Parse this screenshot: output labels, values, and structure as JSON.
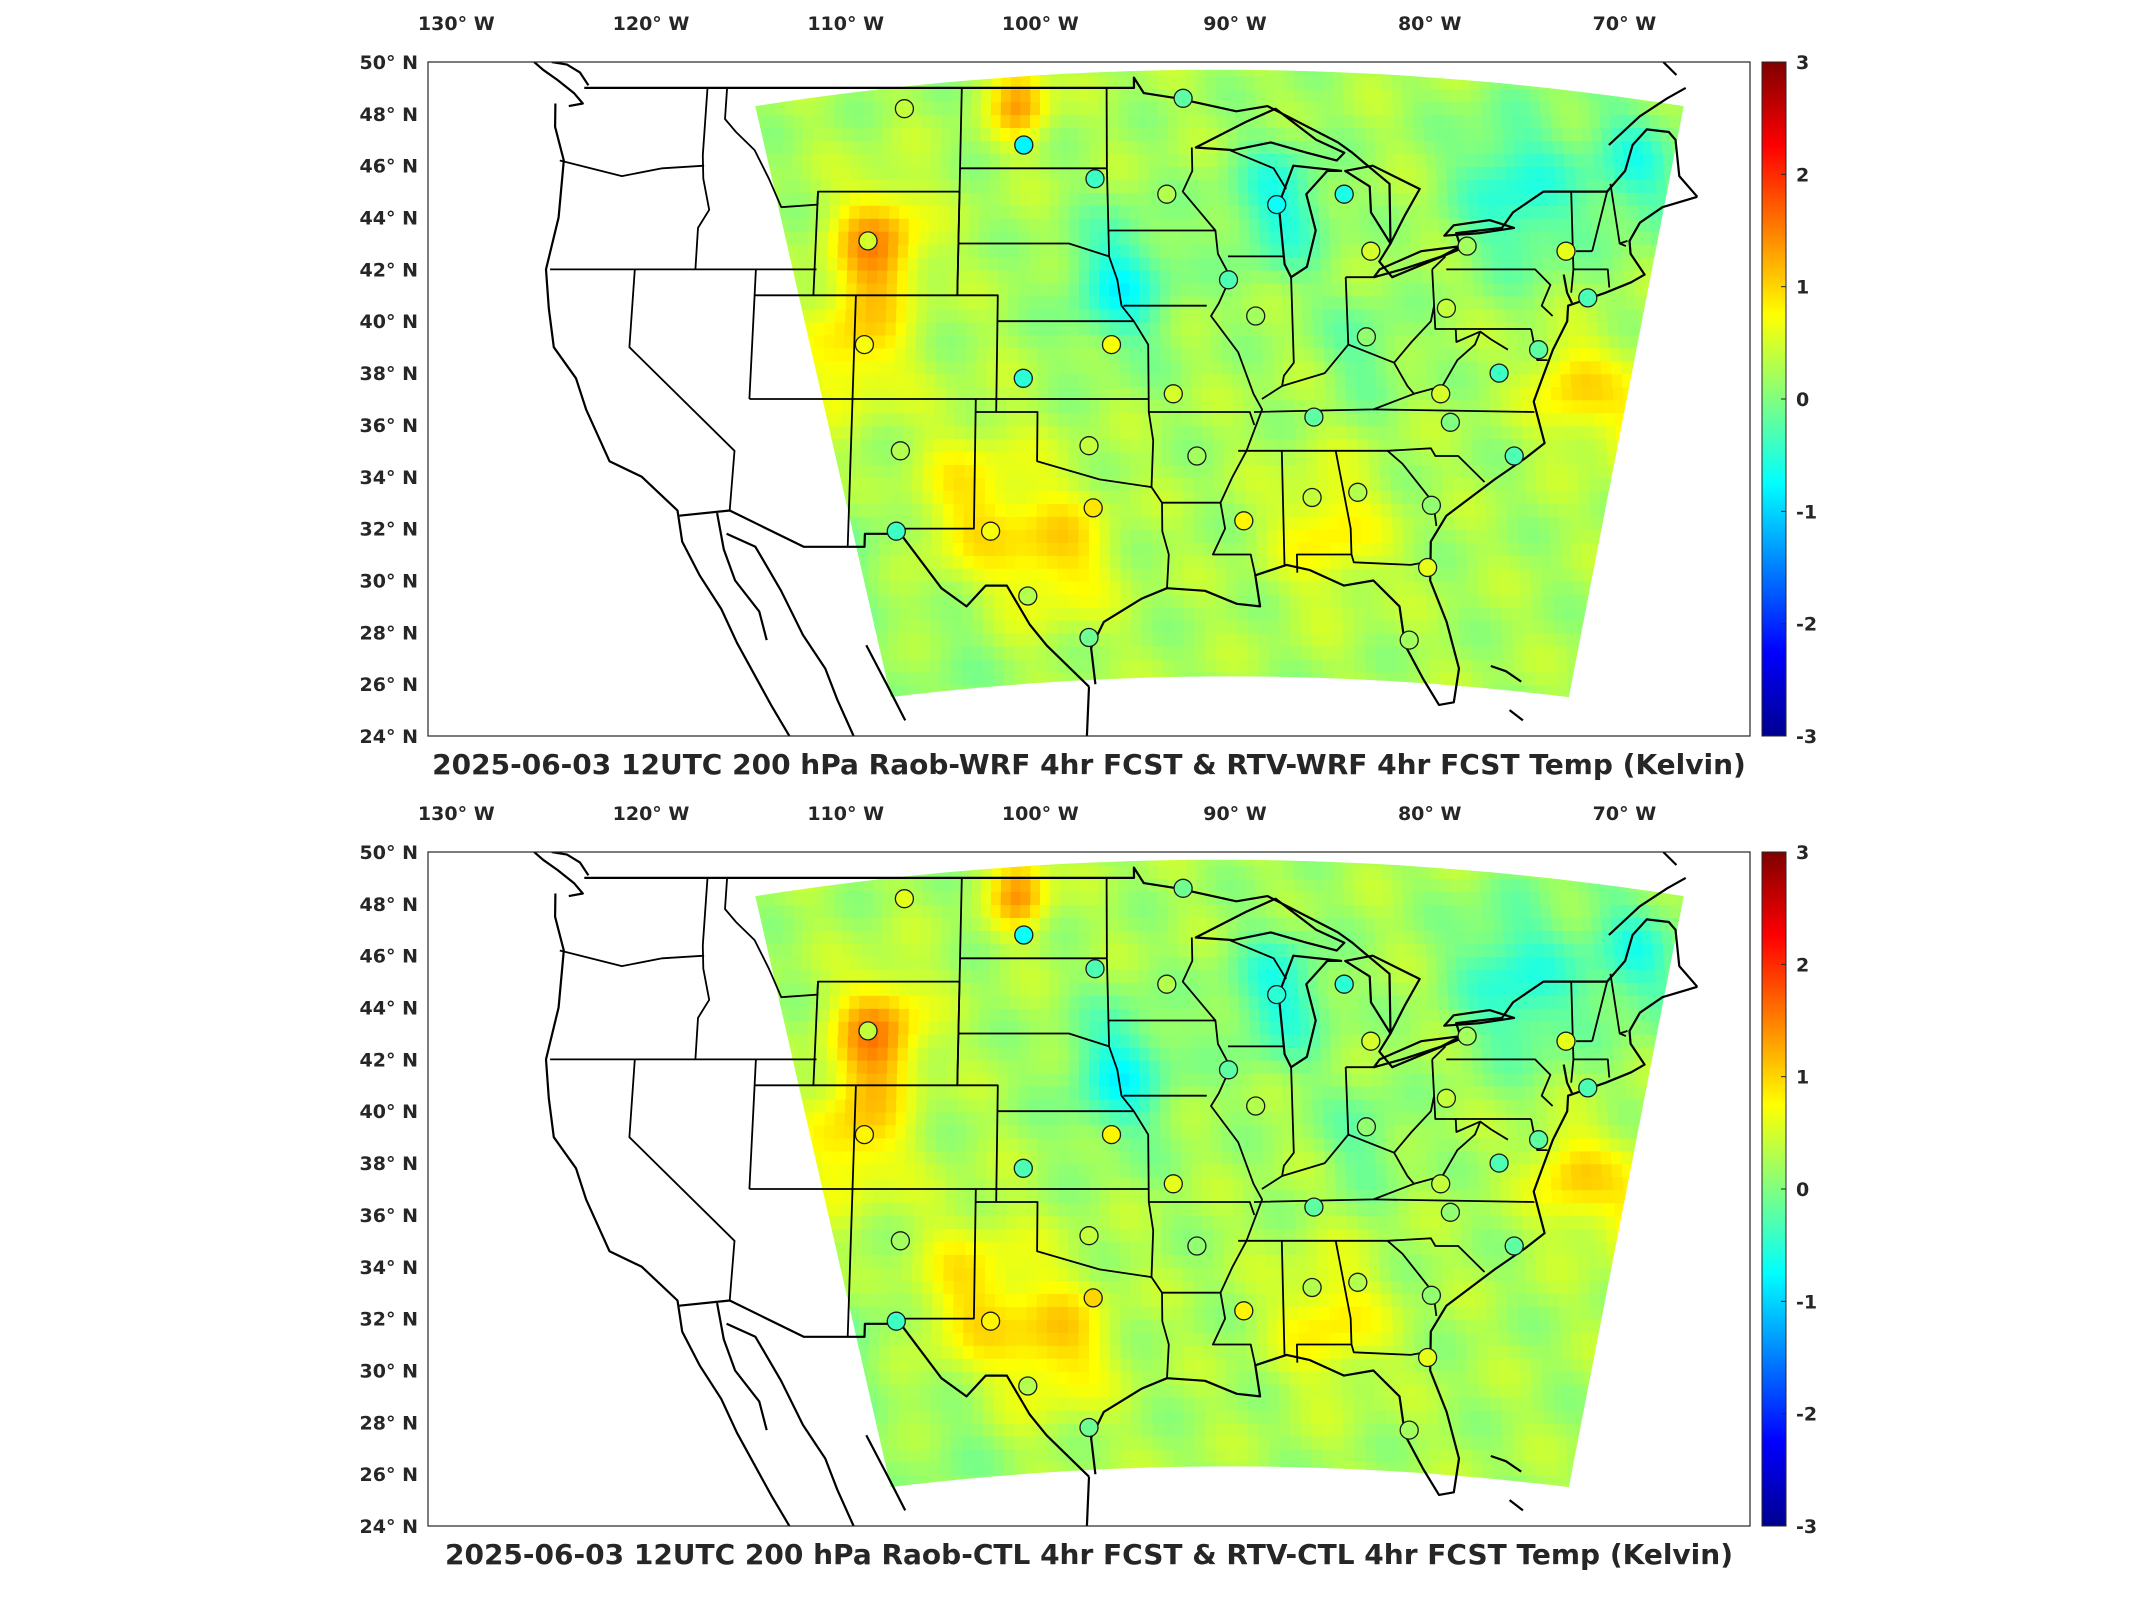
{
  "colors": {
    "colormap": [
      "#00008f",
      "#0000ff",
      "#0080ff",
      "#00ffff",
      "#80ff80",
      "#ffff00",
      "#ff8000",
      "#ff0000",
      "#800000"
    ],
    "outline": "#000000",
    "frame": "#262626"
  },
  "panels": [
    {
      "id": "top",
      "title": "2025-06-03 12UTC 200 hPa Raob-WRF 4hr FCST & RTV-WRF 4hr FCST Temp (Kelvin)",
      "colorbar_ticks": [
        "3",
        "2",
        "1",
        "0",
        "-1",
        "-2",
        "-3"
      ],
      "lon_labels": [
        "130° W",
        "120° W",
        "110° W",
        "100° W",
        "90° W",
        "80° W",
        "70° W"
      ],
      "lat_labels": [
        "50° N",
        "48° N",
        "46° N",
        "44° N",
        "42° N",
        "40° N",
        "38° N",
        "36° N",
        "34° N",
        "32° N",
        "30° N",
        "28° N",
        "26° N",
        "24° N"
      ]
    },
    {
      "id": "bottom",
      "title": "2025-06-03 12UTC 200 hPa Raob-CTL 4hr FCST & RTV-CTL 4hr FCST Temp (Kelvin)",
      "colorbar_ticks": [
        "3",
        "2",
        "1",
        "0",
        "-1",
        "-2",
        "-3"
      ],
      "lon_labels": [
        "130° W",
        "120° W",
        "110° W",
        "100° W",
        "90° W",
        "80° W",
        "70° W"
      ],
      "lat_labels": [
        "50° N",
        "48° N",
        "46° N",
        "44° N",
        "42° N",
        "40° N",
        "38° N",
        "36° N",
        "34° N",
        "32° N",
        "30° N",
        "28° N",
        "26° N",
        "24° N"
      ]
    }
  ],
  "chart_data": {
    "type": "heatmap",
    "colorbar_range": [
      -3,
      3
    ],
    "lon_range": [
      -131,
      -67
    ],
    "lat_range": [
      24,
      50
    ],
    "stations_note_removed": true,
    "stations": [
      {
        "lon": -106.9,
        "lat": 48.2,
        "top": 0.4,
        "bottom": 0.6
      },
      {
        "lon": -100.8,
        "lat": 46.8,
        "top": -0.8,
        "bottom": -0.7
      },
      {
        "lon": -97.2,
        "lat": 45.5,
        "top": -0.4,
        "bottom": -0.3
      },
      {
        "lon": -93.6,
        "lat": 44.9,
        "top": 0.3,
        "bottom": 0.3
      },
      {
        "lon": -92.7,
        "lat": 48.6,
        "top": -0.2,
        "bottom": -0.1
      },
      {
        "lon": -108.5,
        "lat": 43.1,
        "top": 0.5,
        "bottom": 0.4
      },
      {
        "lon": -108.5,
        "lat": 39.1,
        "top": 0.7,
        "bottom": 0.8
      },
      {
        "lon": -96.4,
        "lat": 39.1,
        "top": 0.7,
        "bottom": 0.8
      },
      {
        "lon": -100.7,
        "lat": 37.8,
        "top": -0.5,
        "bottom": -0.3
      },
      {
        "lon": -93.4,
        "lat": 37.2,
        "top": 0.5,
        "bottom": 0.6
      },
      {
        "lon": -97.5,
        "lat": 35.2,
        "top": 0.4,
        "bottom": 0.4
      },
      {
        "lon": -92.3,
        "lat": 34.8,
        "top": 0.2,
        "bottom": 0.1
      },
      {
        "lon": -106.6,
        "lat": 35.0,
        "top": 0.3,
        "bottom": 0.2
      },
      {
        "lon": -106.7,
        "lat": 31.9,
        "top": -0.4,
        "bottom": -0.4
      },
      {
        "lon": -102.2,
        "lat": 31.9,
        "top": 0.7,
        "bottom": 0.8
      },
      {
        "lon": -97.3,
        "lat": 32.8,
        "top": 0.9,
        "bottom": 1.0
      },
      {
        "lon": -100.4,
        "lat": 29.4,
        "top": 0.3,
        "bottom": 0.3
      },
      {
        "lon": -97.5,
        "lat": 27.8,
        "top": -0.1,
        "bottom": -0.1
      },
      {
        "lon": -90.1,
        "lat": 32.3,
        "top": 0.8,
        "bottom": 0.8
      },
      {
        "lon": -86.8,
        "lat": 33.2,
        "top": 0.4,
        "bottom": 0.3
      },
      {
        "lon": -84.6,
        "lat": 33.4,
        "top": 0.3,
        "bottom": 0.3
      },
      {
        "lon": -81.4,
        "lat": 30.5,
        "top": 0.6,
        "bottom": 0.6
      },
      {
        "lon": -82.4,
        "lat": 27.7,
        "top": 0.2,
        "bottom": 0.2
      },
      {
        "lon": -81.1,
        "lat": 32.9,
        "top": 0.1,
        "bottom": 0.1
      },
      {
        "lon": -77.0,
        "lat": 34.8,
        "top": -0.3,
        "bottom": -0.2
      },
      {
        "lon": -80.0,
        "lat": 36.1,
        "top": 0.0,
        "bottom": 0.1
      },
      {
        "lon": -80.4,
        "lat": 37.2,
        "top": 0.5,
        "bottom": 0.4
      },
      {
        "lon": -86.6,
        "lat": 36.3,
        "top": -0.2,
        "bottom": -0.2
      },
      {
        "lon": -83.9,
        "lat": 39.4,
        "top": 0.1,
        "bottom": 0.1
      },
      {
        "lon": -89.3,
        "lat": 40.2,
        "top": 0.2,
        "bottom": 0.3
      },
      {
        "lon": -90.6,
        "lat": 41.6,
        "top": -0.3,
        "bottom": -0.2
      },
      {
        "lon": -88.1,
        "lat": 44.5,
        "top": -0.7,
        "bottom": -0.5
      },
      {
        "lon": -84.7,
        "lat": 44.9,
        "top": -0.6,
        "bottom": -0.5
      },
      {
        "lon": -83.5,
        "lat": 42.7,
        "top": 0.5,
        "bottom": 0.5
      },
      {
        "lon": -79.9,
        "lat": 40.5,
        "top": 0.4,
        "bottom": 0.4
      },
      {
        "lon": -78.7,
        "lat": 42.9,
        "top": 0.2,
        "bottom": 0.2
      },
      {
        "lon": -73.8,
        "lat": 42.7,
        "top": 0.6,
        "bottom": 0.6
      },
      {
        "lon": -72.9,
        "lat": 40.9,
        "top": -0.3,
        "bottom": -0.3
      },
      {
        "lon": -75.5,
        "lat": 38.9,
        "top": -0.2,
        "bottom": -0.2
      },
      {
        "lon": -77.5,
        "lat": 38.0,
        "top": -0.4,
        "bottom": -0.3
      }
    ]
  }
}
